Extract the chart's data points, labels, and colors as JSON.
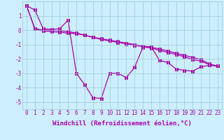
{
  "background_color": "#cceeff",
  "line_color": "#aa00aa",
  "marker": "s",
  "markersize": 2.5,
  "linewidth": 0.9,
  "grid_color": "#99cccc",
  "xlabel": "Windchill (Refroidissement éolien,°C)",
  "xlabel_fontsize": 6.5,
  "tick_fontsize": 5.5,
  "xlim": [
    -0.5,
    23.5
  ],
  "ylim": [
    -5.5,
    2.0
  ],
  "xtick_labels": [
    "0",
    "1",
    "2",
    "3",
    "4",
    "5",
    "6",
    "7",
    "8",
    "9",
    "10",
    "11",
    "12",
    "13",
    "14",
    "15",
    "16",
    "17",
    "18",
    "19",
    "20",
    "21",
    "22",
    "23"
  ],
  "yticks": [
    -5,
    -4,
    -3,
    -2,
    -1,
    0,
    1
  ],
  "series": [
    [
      1.7,
      1.4,
      0.1,
      0.05,
      0.1,
      0.7,
      -3.0,
      -3.8,
      -4.7,
      -4.75,
      -3.0,
      -3.0,
      -3.3,
      -2.6,
      -1.2,
      -1.15,
      -2.1,
      -2.25,
      -2.7,
      -2.8,
      -2.85,
      -2.55,
      -2.45,
      -2.5
    ],
    [
      1.7,
      0.1,
      0.0,
      0.0,
      -0.05,
      -0.1,
      -0.2,
      -0.35,
      -0.5,
      -0.6,
      -0.7,
      -0.8,
      -0.9,
      -1.0,
      -1.1,
      -1.2,
      -1.3,
      -1.45,
      -1.6,
      -1.75,
      -1.9,
      -2.05,
      -2.35,
      -2.5
    ],
    [
      1.7,
      0.1,
      -0.05,
      -0.1,
      -0.15,
      -0.2,
      -0.25,
      -0.35,
      -0.5,
      -0.65,
      -0.75,
      -0.85,
      -0.95,
      -1.05,
      -1.15,
      -1.25,
      -1.4,
      -1.55,
      -1.7,
      -1.85,
      -2.05,
      -2.15,
      -2.4,
      -2.5
    ]
  ]
}
